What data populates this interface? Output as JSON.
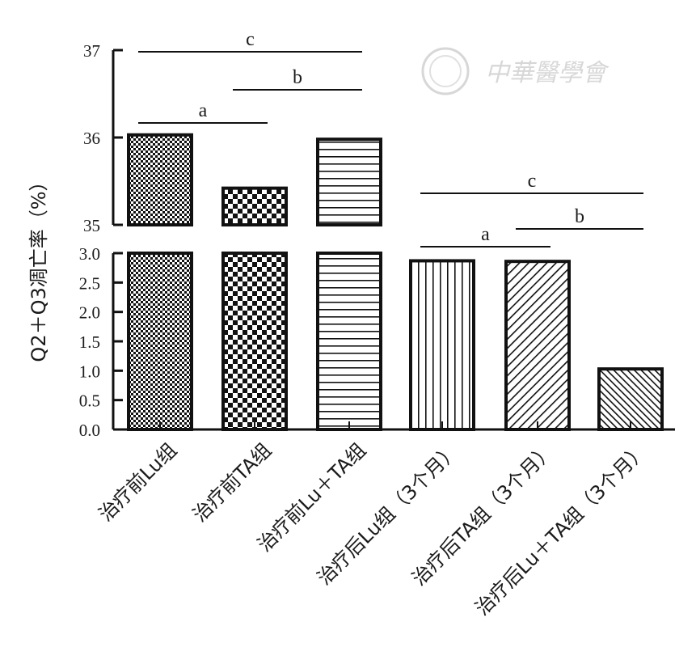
{
  "watermark": {
    "text": "中華醫學會"
  },
  "chart_data": {
    "type": "bar",
    "ylabel": "Q2＋Q3凋亡率（%）",
    "axis_break": {
      "lower_range": [
        0,
        3.0
      ],
      "upper_range": [
        35,
        37
      ]
    },
    "yticks_lower": [
      "0.0",
      "0.5",
      "1.0",
      "1.5",
      "2.0",
      "2.5",
      "3.0"
    ],
    "yticks_upper": [
      "35",
      "36",
      "37"
    ],
    "categories": [
      "治疗前Lu组",
      "治疗前TA组",
      "治疗前Lu＋TA组",
      "治疗后Lu组（3个月）",
      "治疗后TA组（3个月）",
      "治疗后Lu＋TA组（3个月）"
    ],
    "values": [
      36.03,
      35.42,
      35.98,
      2.87,
      2.86,
      1.03
    ],
    "patterns": [
      "fine-checker",
      "coarse-checker",
      "horizontal-lines",
      "vertical-lines",
      "diagonal-lines",
      "diagonal-lines-dense"
    ],
    "significance": [
      {
        "label": "a",
        "from": 0,
        "to": 1
      },
      {
        "label": "b",
        "from": 1,
        "to": 2
      },
      {
        "label": "c",
        "from": 0,
        "to": 2
      },
      {
        "label": "a",
        "from": 3,
        "to": 4
      },
      {
        "label": "b",
        "from": 4,
        "to": 5
      },
      {
        "label": "c",
        "from": 3,
        "to": 5
      }
    ],
    "grid": false,
    "legend": "none"
  }
}
